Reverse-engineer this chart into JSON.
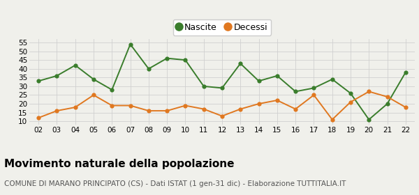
{
  "years": [
    "02",
    "03",
    "04",
    "05",
    "06",
    "07",
    "08",
    "09",
    "10",
    "11",
    "12",
    "13",
    "14",
    "15",
    "16",
    "17",
    "18",
    "19",
    "20",
    "21",
    "22"
  ],
  "nascite": [
    33,
    36,
    42,
    34,
    28,
    54,
    40,
    46,
    45,
    30,
    29,
    43,
    33,
    36,
    27,
    29,
    34,
    26,
    11,
    20,
    38
  ],
  "decessi": [
    12,
    16,
    18,
    25,
    19,
    19,
    16,
    16,
    19,
    17,
    13,
    17,
    20,
    22,
    17,
    25,
    11,
    21,
    27,
    24,
    18
  ],
  "nascite_color": "#3a7d2c",
  "decessi_color": "#e07820",
  "bg_color": "#f0f0eb",
  "legend_bg": "#ffffff",
  "grid_color": "#d0d0d0",
  "ylim": [
    8,
    57
  ],
  "yticks": [
    10,
    15,
    20,
    25,
    30,
    35,
    40,
    45,
    50,
    55
  ],
  "title": "Movimento naturale della popolazione",
  "subtitle": "COMUNE DI MARANO PRINCIPATO (CS) - Dati ISTAT (1 gen-31 dic) - Elaborazione TUTTITALIA.IT",
  "title_fontsize": 11,
  "subtitle_fontsize": 7.5,
  "legend_nascite": "Nascite",
  "legend_decessi": "Decessi",
  "tick_fontsize": 7.5,
  "marker_size": 4.5,
  "line_width": 1.4
}
